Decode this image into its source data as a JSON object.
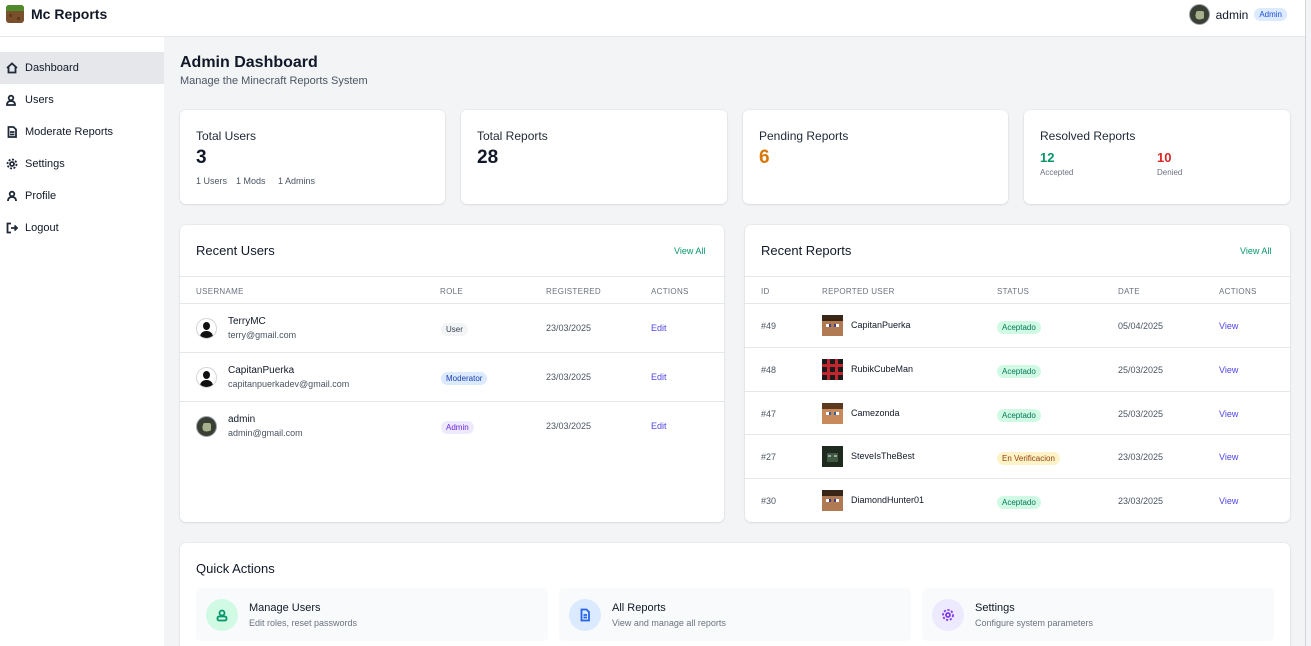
{
  "app": {
    "name": "Mc Reports"
  },
  "user_menu": {
    "name": "admin",
    "role_badge": "Admin"
  },
  "sidebar": {
    "items": [
      {
        "label": "Dashboard",
        "icon": "home-icon",
        "active": true
      },
      {
        "label": "Users",
        "icon": "users-icon"
      },
      {
        "label": "Moderate Reports",
        "icon": "file-icon"
      },
      {
        "label": "Settings",
        "icon": "gear-icon"
      },
      {
        "label": "Profile",
        "icon": "user-icon"
      },
      {
        "label": "Logout",
        "icon": "logout-icon"
      }
    ]
  },
  "header": {
    "title": "Admin Dashboard",
    "subtitle": "Manage the Minecraft Reports System"
  },
  "stats": {
    "total_users": {
      "title": "Total Users",
      "value": "3",
      "breakdown": [
        "1 Users",
        "1 Mods",
        "1 Admins"
      ]
    },
    "total_reports": {
      "title": "Total Reports",
      "value": "28"
    },
    "pending_reports": {
      "title": "Pending Reports",
      "value": "6",
      "color": "#d97706"
    },
    "resolved_reports": {
      "title": "Resolved Reports",
      "accepted": {
        "value": "12",
        "label": "Accepted",
        "color": "#059669"
      },
      "denied": {
        "value": "10",
        "label": "Denied",
        "color": "#dc2626"
      }
    }
  },
  "recent_users": {
    "title": "Recent Users",
    "view_all": "View All",
    "columns": [
      "USERNAME",
      "ROLE",
      "REGISTERED",
      "ACTIONS"
    ],
    "rows": [
      {
        "username": "TerryMC",
        "email": "terry@gmail.com",
        "role": "User",
        "registered": "23/03/2025",
        "action": "Edit",
        "avatar": "default-avatar"
      },
      {
        "username": "CapitanPuerka",
        "email": "capitanpuerkadev@gmail.com",
        "role": "Moderator",
        "registered": "23/03/2025",
        "action": "Edit",
        "avatar": "default-avatar"
      },
      {
        "username": "admin",
        "email": "admin@gmail.com",
        "role": "Admin",
        "registered": "23/03/2025",
        "action": "Edit",
        "avatar": "admin-avatar"
      }
    ]
  },
  "recent_reports": {
    "title": "Recent Reports",
    "view_all": "View All",
    "columns": [
      "ID",
      "REPORTED USER",
      "STATUS",
      "DATE",
      "ACTIONS"
    ],
    "rows": [
      {
        "id": "#49",
        "user": "CapitanPuerka",
        "status": "Aceptado",
        "date": "05/04/2025",
        "action": "View",
        "skin": "steve"
      },
      {
        "id": "#48",
        "user": "RubikCubeMan",
        "status": "Aceptado",
        "date": "25/03/2025",
        "action": "View",
        "skin": "rubik"
      },
      {
        "id": "#47",
        "user": "Camezonda",
        "status": "Aceptado",
        "date": "25/03/2025",
        "action": "View",
        "skin": "came"
      },
      {
        "id": "#27",
        "user": "SteveIsTheBest",
        "status": "En Verificacion",
        "date": "23/03/2025",
        "action": "View",
        "skin": "steveb"
      },
      {
        "id": "#30",
        "user": "DiamondHunter01",
        "status": "Aceptado",
        "date": "23/03/2025",
        "action": "View",
        "skin": "steve"
      }
    ]
  },
  "quick_actions": {
    "title": "Quick Actions",
    "items": [
      {
        "name": "Manage Users",
        "desc": "Edit roles, reset passwords",
        "icon": "users-icon",
        "color": "#059669"
      },
      {
        "name": "All Reports",
        "desc": "View and manage all reports",
        "icon": "document-icon",
        "color": "#2563eb"
      },
      {
        "name": "Settings",
        "desc": "Configure system parameters",
        "icon": "gear-icon",
        "color": "#7c3aed"
      }
    ]
  }
}
